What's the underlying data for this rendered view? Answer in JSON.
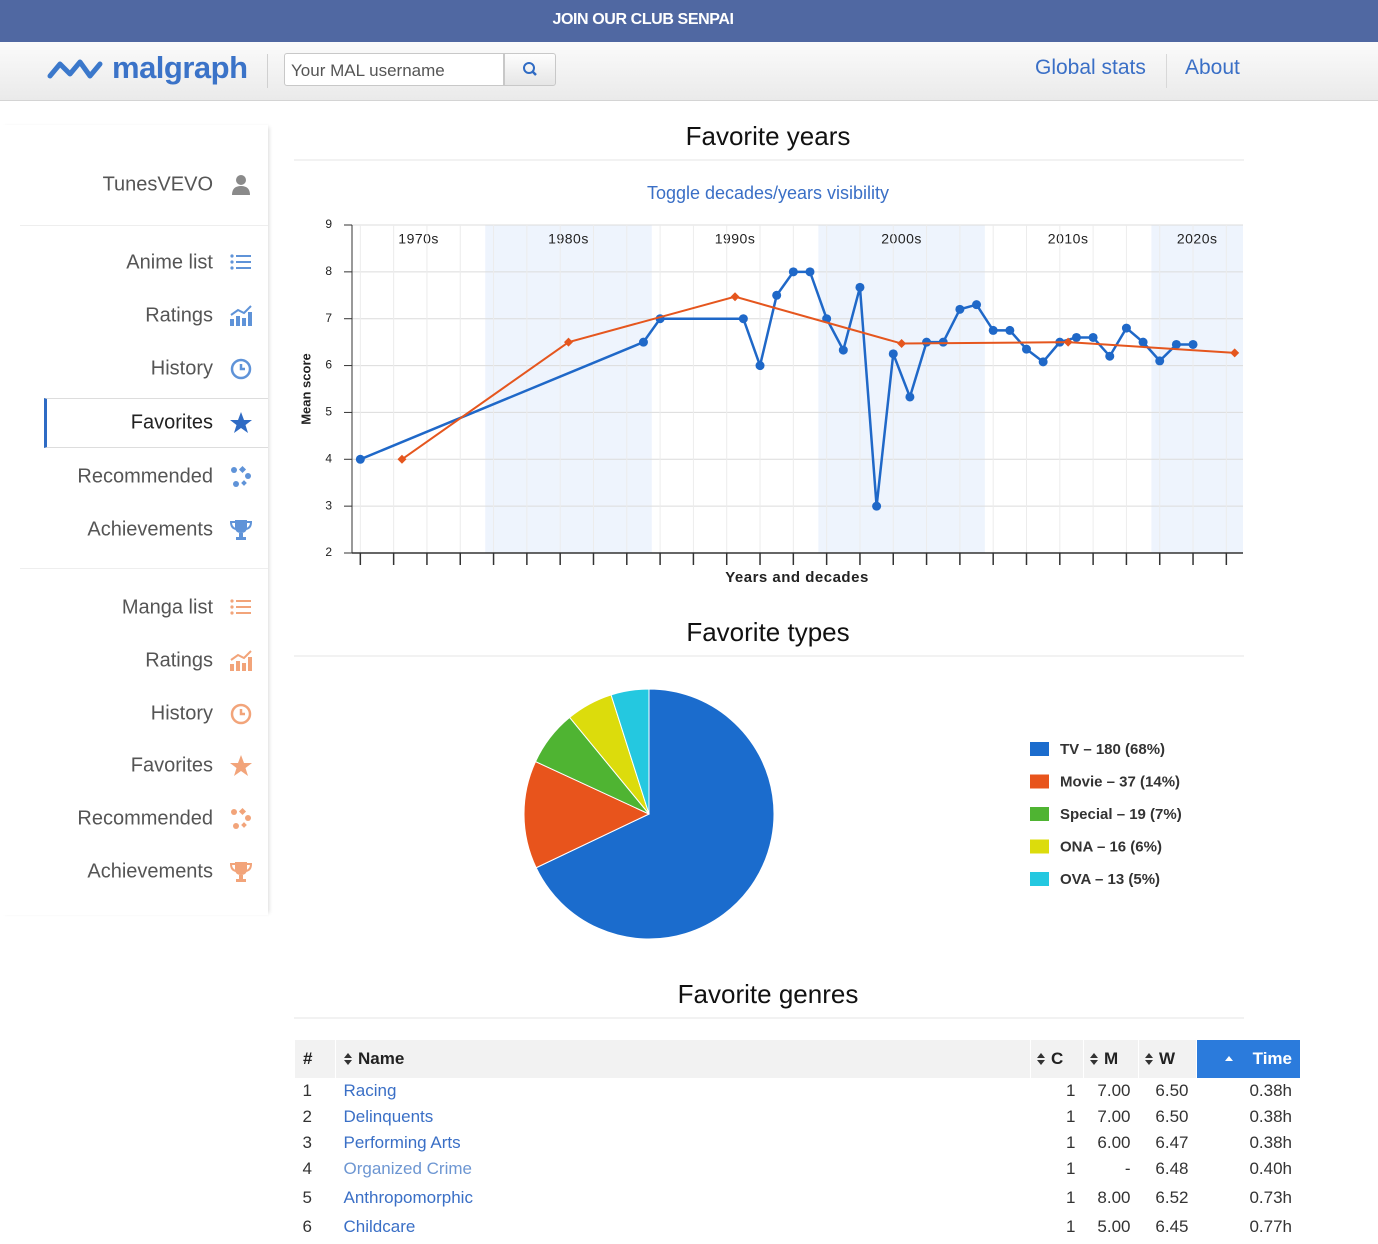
{
  "banner": "JOIN OUR CLUB SENPAI",
  "header": {
    "logo": "malgraph",
    "search_placeholder": "Your MAL username",
    "links": [
      "Global stats",
      "About"
    ]
  },
  "sidebar": {
    "user": "TunesVEVO",
    "anime": [
      "Anime list",
      "Ratings",
      "History",
      "Favorites",
      "Recommended",
      "Achievements"
    ],
    "manga": [
      "Manga list",
      "Ratings",
      "History",
      "Favorites",
      "Recommended",
      "Achievements"
    ]
  },
  "chart_data": [
    {
      "type": "line",
      "title": "Favorite years",
      "toggle_label": "Toggle decades/years visibility",
      "xlabel": "Years and decades",
      "ylabel": "Mean score",
      "xlim": [
        1971.5,
        2025
      ],
      "ylim": [
        2,
        9
      ],
      "yticks": [
        2,
        3,
        4,
        5,
        6,
        7,
        8,
        9
      ],
      "xticks": [
        1972,
        1974,
        1976,
        1978,
        1980,
        1982,
        1984,
        1986,
        1988,
        1990,
        1992,
        1994,
        1996,
        1998,
        2000,
        2002,
        2004,
        2006,
        2008,
        2010,
        2012,
        2014,
        2016,
        2018,
        2020,
        2022,
        2024
      ],
      "grid": true,
      "series": [
        {
          "color": "#1f68c8",
          "x": [
            1972,
            1989,
            1990,
            1995,
            1996,
            1997,
            1998,
            1999,
            2000,
            2001,
            2002,
            2003,
            2004,
            2005,
            2006,
            2007,
            2008,
            2009,
            2010,
            2011,
            2012,
            2013,
            2014,
            2015,
            2016,
            2017,
            2018,
            2019,
            2020,
            2021,
            2022
          ],
          "values": [
            4.0,
            6.5,
            7.0,
            7.0,
            6.0,
            7.5,
            8.0,
            8.0,
            7.0,
            6.33,
            7.67,
            3.0,
            6.25,
            5.33,
            6.5,
            6.5,
            7.2,
            7.3,
            6.75,
            6.75,
            6.35,
            6.08,
            6.5,
            6.6,
            6.6,
            6.2,
            6.8,
            6.5,
            6.1,
            6.45,
            6.45
          ]
        },
        {
          "color": "#e5561e",
          "x": [
            1974.5,
            1984.5,
            1994.5,
            2004.5,
            2014.5,
            2024.5
          ],
          "values": [
            4.0,
            6.5,
            7.47,
            6.47,
            6.5,
            6.27
          ],
          "labels": [
            "1970s",
            "1980s",
            "1990s",
            "2000s",
            "2010s",
            "2020s"
          ]
        }
      ]
    },
    {
      "type": "pie",
      "title": "Favorite types",
      "categories": [
        "TV – 180 (68%)",
        "Movie – 37 (14%)",
        "Special – 19 (7%)",
        "ONA – 16 (6%)",
        "OVA – 13 (5%)"
      ],
      "values": [
        180,
        37,
        19,
        16,
        13
      ],
      "colors": [
        "#1b6ccd",
        "#e8541c",
        "#4fb432",
        "#dcdc0c",
        "#24c8e0"
      ]
    }
  ],
  "genres": {
    "title": "Favorite genres",
    "columns": [
      "#",
      "Name",
      "C",
      "M",
      "W",
      "Time"
    ],
    "rows": [
      [
        "1",
        "Racing",
        "1",
        "7.00",
        "6.50",
        "0.38h"
      ],
      [
        "2",
        "Delinquents",
        "1",
        "7.00",
        "6.50",
        "0.38h"
      ],
      [
        "3",
        "Performing Arts",
        "1",
        "6.00",
        "6.47",
        "0.38h"
      ],
      [
        "4",
        "Organized Crime",
        "1",
        "-",
        "6.48",
        "0.40h"
      ],
      [
        "5",
        "Anthropomorphic",
        "1",
        "8.00",
        "6.52",
        "0.73h"
      ],
      [
        "6",
        "Childcare",
        "1",
        "5.00",
        "6.45",
        "0.77h"
      ]
    ]
  }
}
